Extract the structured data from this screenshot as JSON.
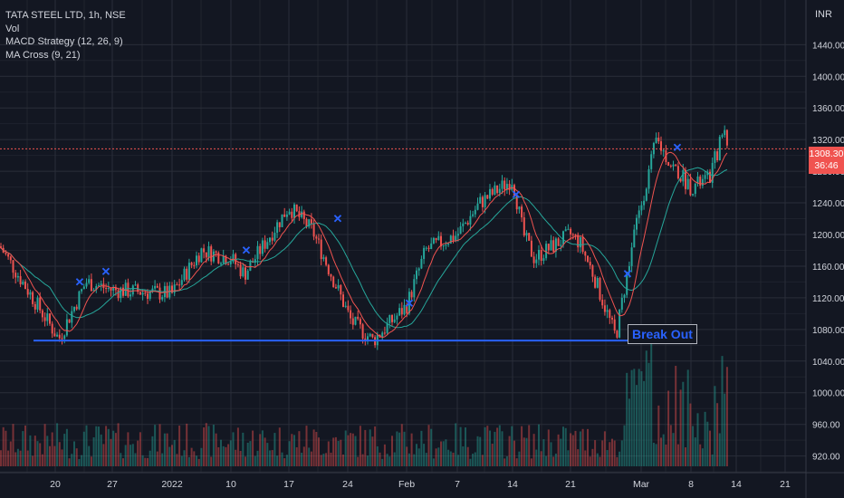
{
  "legend": {
    "symbol": "TATA STEEL LTD, 1h, NSE",
    "vol": "Vol",
    "macd": "MACD Strategy (12, 26, 9)",
    "ma_cross": "MA Cross (9, 21)"
  },
  "currency_unit": "INR",
  "last_price": {
    "price": "1308.30",
    "countdown": "36:46",
    "color": "#f05350"
  },
  "annotation": "Break Out",
  "colors": {
    "background": "#131722",
    "grid": "#2a2e39",
    "up": "#26a69a",
    "down": "#ef5350",
    "ma_fast": "#f05350",
    "ma_slow": "#26a69a",
    "support": "#2962ff",
    "axis_text": "#d1d4dc"
  },
  "chart_data": {
    "type": "candlestick",
    "y_axis": {
      "ticks": [
        1440,
        1400,
        1360,
        1320,
        1280,
        1240,
        1200,
        1160,
        1120,
        1080,
        1040,
        1000,
        960,
        920
      ],
      "range": [
        907,
        1485
      ],
      "position": "right"
    },
    "x_axis": {
      "ticks": [
        "20",
        "27",
        "2022",
        "10",
        "17",
        "24",
        "Feb",
        "7",
        "14",
        "21",
        "Mar",
        "8",
        "14",
        "21"
      ]
    },
    "support_level": 1066,
    "last_price": 1308.3,
    "price_path": [
      {
        "x": "start",
        "close": 1185
      },
      {
        "x": "20",
        "close": 1068
      },
      {
        "x": "after-20",
        "close": 1140
      },
      {
        "x": "27",
        "close": 1130
      },
      {
        "x": "2022",
        "close": 1125
      },
      {
        "x": "4 Jan",
        "close": 1180
      },
      {
        "x": "10",
        "close": 1170
      },
      {
        "x": "13 Jan",
        "close": 1150
      },
      {
        "x": "17",
        "close": 1235
      },
      {
        "x": "19 Jan",
        "close": 1205
      },
      {
        "x": "24",
        "close": 1090
      },
      {
        "x": "25 Jan",
        "close": 1066
      },
      {
        "x": "Feb",
        "close": 1110
      },
      {
        "x": "2 Feb",
        "close": 1180
      },
      {
        "x": "7",
        "close": 1200
      },
      {
        "x": "10 Feb",
        "close": 1240
      },
      {
        "x": "14",
        "close": 1270
      },
      {
        "x": "16 Feb",
        "close": 1200
      },
      {
        "x": "18 Feb",
        "close": 1170
      },
      {
        "x": "21",
        "close": 1200
      },
      {
        "x": "23 Feb",
        "close": 1190
      },
      {
        "x": "24 Feb",
        "close": 1150
      },
      {
        "x": "25 Feb",
        "close": 1070
      },
      {
        "x": "28 Feb",
        "close": 1200
      },
      {
        "x": "Mar",
        "close": 1320
      },
      {
        "x": "4 Mar",
        "close": 1290
      },
      {
        "x": "8",
        "close": 1260
      },
      {
        "x": "10 Mar",
        "close": 1270
      },
      {
        "x": "11 Mar",
        "close": 1335
      },
      {
        "x": "last",
        "close": 1308
      }
    ],
    "volume_note": "histogram bars, red/green per candle"
  }
}
